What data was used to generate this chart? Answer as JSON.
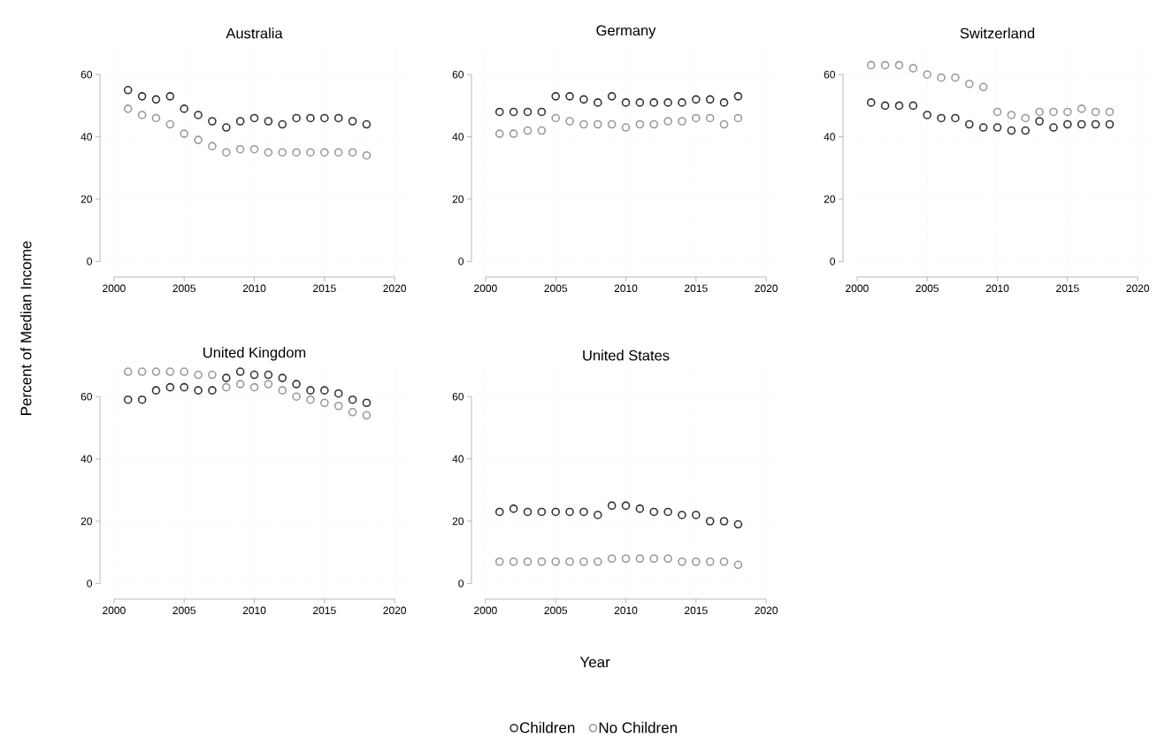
{
  "chart_data": [
    {
      "type": "scatter",
      "title": "Australia",
      "ylabel": "Percent of Median Income",
      "x": [
        2001,
        2002,
        2003,
        2004,
        2005,
        2006,
        2007,
        2008,
        2009,
        2010,
        2011,
        2012,
        2013,
        2014,
        2015,
        2016,
        2017,
        2018
      ],
      "xlim": [
        1999,
        2021
      ],
      "ylim": [
        -5,
        70
      ],
      "xticks": [
        2000,
        2005,
        2010,
        2015,
        2020
      ],
      "yticks": [
        0,
        20,
        40,
        60
      ],
      "grid": true,
      "marker": "circle",
      "series": [
        {
          "color": "#333333",
          "values": [
            55,
            53,
            52,
            53,
            49,
            47,
            45,
            43,
            45,
            46,
            45,
            44,
            46,
            46,
            46,
            46,
            45,
            44
          ]
        },
        {
          "color": "#999999",
          "values": [
            49,
            47,
            46,
            44,
            41,
            39,
            37,
            35,
            36,
            36,
            35,
            35,
            35,
            35,
            35,
            35,
            35,
            34
          ]
        }
      ]
    },
    {
      "type": "scatter",
      "title": "Germany",
      "x": [
        2001,
        2002,
        2003,
        2004,
        2005,
        2006,
        2007,
        2008,
        2009,
        2010,
        2011,
        2012,
        2013,
        2014,
        2015,
        2016,
        2017,
        2018
      ],
      "xlim": [
        1999,
        2021
      ],
      "ylim": [
        -5,
        70
      ],
      "xticks": [
        2000,
        2005,
        2010,
        2015,
        2020
      ],
      "yticks": [
        0,
        20,
        40,
        60
      ],
      "grid": true,
      "marker": "circle",
      "series": [
        {
          "color": "#333333",
          "values": [
            48,
            48,
            48,
            48,
            53,
            53,
            52,
            51,
            53,
            51,
            51,
            51,
            51,
            51,
            52,
            52,
            51,
            53
          ]
        },
        {
          "color": "#999999",
          "values": [
            41,
            41,
            42,
            42,
            46,
            45,
            44,
            44,
            44,
            43,
            44,
            44,
            45,
            45,
            46,
            46,
            44,
            46
          ]
        }
      ]
    },
    {
      "type": "scatter",
      "title": "Switzerland",
      "x": [
        2001,
        2002,
        2003,
        2004,
        2005,
        2006,
        2007,
        2008,
        2009,
        2010,
        2011,
        2012,
        2013,
        2014,
        2015,
        2016,
        2017,
        2018
      ],
      "xlim": [
        1999,
        2021
      ],
      "ylim": [
        -5,
        70
      ],
      "xticks": [
        2000,
        2005,
        2010,
        2015,
        2020
      ],
      "yticks": [
        0,
        20,
        40,
        60
      ],
      "grid": true,
      "marker": "circle",
      "series": [
        {
          "color": "#333333",
          "values": [
            51,
            50,
            50,
            50,
            47,
            46,
            46,
            44,
            43,
            43,
            42,
            42,
            45,
            43,
            44,
            44,
            44,
            44
          ]
        },
        {
          "color": "#999999",
          "values": [
            63,
            63,
            63,
            62,
            60,
            59,
            59,
            57,
            56,
            48,
            47,
            46,
            48,
            48,
            48,
            49,
            48,
            48
          ]
        }
      ]
    },
    {
      "type": "scatter",
      "title": "United Kingdom",
      "x": [
        2001,
        2002,
        2003,
        2004,
        2005,
        2006,
        2007,
        2008,
        2009,
        2010,
        2011,
        2012,
        2013,
        2014,
        2015,
        2016,
        2017,
        2018
      ],
      "xlim": [
        1999,
        2021
      ],
      "ylim": [
        -5,
        70
      ],
      "xticks": [
        2000,
        2005,
        2010,
        2015,
        2020
      ],
      "yticks": [
        0,
        20,
        40,
        60
      ],
      "grid": true,
      "marker": "circle",
      "series": [
        {
          "color": "#333333",
          "values": [
            59,
            59,
            62,
            63,
            63,
            62,
            62,
            66,
            68,
            67,
            67,
            66,
            64,
            62,
            62,
            61,
            59,
            58
          ]
        },
        {
          "color": "#999999",
          "values": [
            68,
            68,
            68,
            68,
            68,
            67,
            67,
            63,
            64,
            63,
            64,
            62,
            60,
            59,
            58,
            57,
            55,
            54
          ]
        }
      ]
    },
    {
      "type": "scatter",
      "title": "United States",
      "xlabel": "Year",
      "x": [
        2001,
        2002,
        2003,
        2004,
        2005,
        2006,
        2007,
        2008,
        2009,
        2010,
        2011,
        2012,
        2013,
        2014,
        2015,
        2016,
        2017,
        2018
      ],
      "xlim": [
        1999,
        2021
      ],
      "ylim": [
        -5,
        70
      ],
      "xticks": [
        2000,
        2005,
        2010,
        2015,
        2020
      ],
      "yticks": [
        0,
        20,
        40,
        60
      ],
      "grid": true,
      "marker": "circle",
      "legend": "bottom",
      "series": [
        {
          "name": "Children",
          "color": "#333333",
          "values": [
            23,
            24,
            23,
            23,
            23,
            23,
            23,
            22,
            25,
            25,
            24,
            23,
            23,
            22,
            22,
            20,
            20,
            19
          ]
        },
        {
          "name": "No Children",
          "color": "#999999",
          "values": [
            7,
            7,
            7,
            7,
            7,
            7,
            7,
            7,
            8,
            8,
            8,
            8,
            8,
            7,
            7,
            7,
            7,
            6
          ]
        }
      ]
    }
  ]
}
